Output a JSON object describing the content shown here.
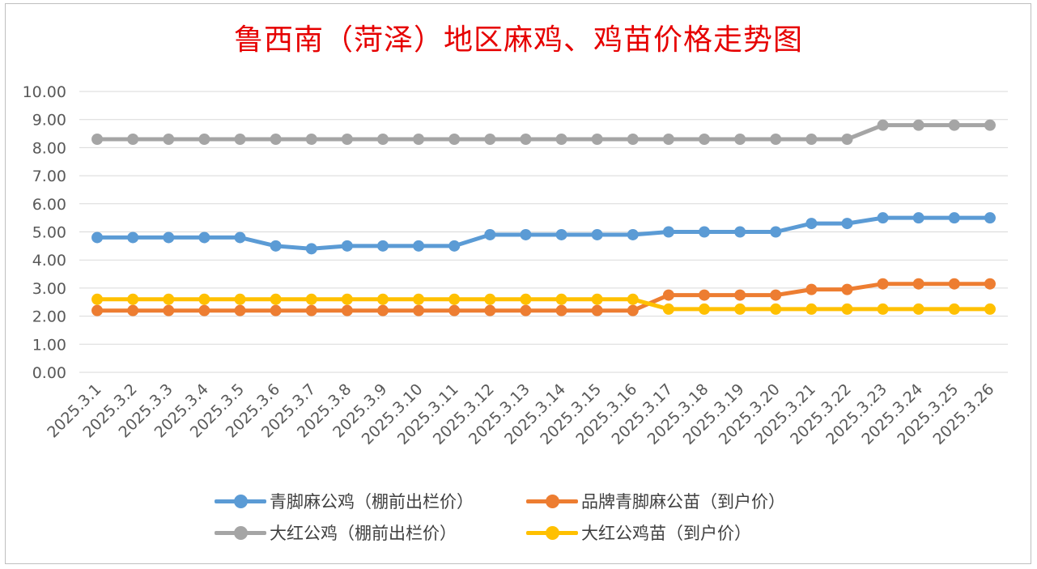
{
  "chart_data": {
    "type": "line",
    "title": "鲁西南（菏泽）地区麻鸡、鸡苗价格走势图",
    "categories": [
      "2025.3.1",
      "2025.3.2",
      "2025.3.3",
      "2025.3.4",
      "2025.3.5",
      "2025.3.6",
      "2025.3.7",
      "2025.3.8",
      "2025.3.9",
      "2025.3.10",
      "2025.3.11",
      "2025.3.12",
      "2025.3.13",
      "2025.3.14",
      "2025.3.15",
      "2025.3.16",
      "2025.3.17",
      "2025.3.18",
      "2025.3.19",
      "2025.3.20",
      "2025.3.21",
      "2025.3.22",
      "2025.3.23",
      "2025.3.24",
      "2025.3.25",
      "2025.3.26"
    ],
    "ylim": [
      0,
      10
    ],
    "yticks": [
      "0.00",
      "1.00",
      "2.00",
      "3.00",
      "4.00",
      "5.00",
      "6.00",
      "7.00",
      "8.00",
      "9.00",
      "10.00"
    ],
    "grid": true,
    "legend_position": "bottom",
    "series": [
      {
        "name": "青脚麻公鸡（棚前出栏价）",
        "color": "#5b9bd5",
        "values": [
          4.8,
          4.8,
          4.8,
          4.8,
          4.8,
          4.5,
          4.4,
          4.5,
          4.5,
          4.5,
          4.5,
          4.9,
          4.9,
          4.9,
          4.9,
          4.9,
          5.0,
          5.0,
          5.0,
          5.0,
          5.3,
          5.3,
          5.5,
          5.5,
          5.5,
          5.5
        ]
      },
      {
        "name": "品牌青脚麻公苗（到户价）",
        "color": "#ed7d31",
        "values": [
          2.2,
          2.2,
          2.2,
          2.2,
          2.2,
          2.2,
          2.2,
          2.2,
          2.2,
          2.2,
          2.2,
          2.2,
          2.2,
          2.2,
          2.2,
          2.2,
          2.75,
          2.75,
          2.75,
          2.75,
          2.95,
          2.95,
          3.15,
          3.15,
          3.15,
          3.15
        ]
      },
      {
        "name": "大红公鸡（棚前出栏价）",
        "color": "#a5a5a5",
        "values": [
          8.3,
          8.3,
          8.3,
          8.3,
          8.3,
          8.3,
          8.3,
          8.3,
          8.3,
          8.3,
          8.3,
          8.3,
          8.3,
          8.3,
          8.3,
          8.3,
          8.3,
          8.3,
          8.3,
          8.3,
          8.3,
          8.3,
          8.8,
          8.8,
          8.8,
          8.8
        ]
      },
      {
        "name": "大红公鸡苗（到户价）",
        "color": "#ffc000",
        "values": [
          2.6,
          2.6,
          2.6,
          2.6,
          2.6,
          2.6,
          2.6,
          2.6,
          2.6,
          2.6,
          2.6,
          2.6,
          2.6,
          2.6,
          2.6,
          2.6,
          2.25,
          2.25,
          2.25,
          2.25,
          2.25,
          2.25,
          2.25,
          2.25,
          2.25,
          2.25
        ]
      }
    ]
  }
}
